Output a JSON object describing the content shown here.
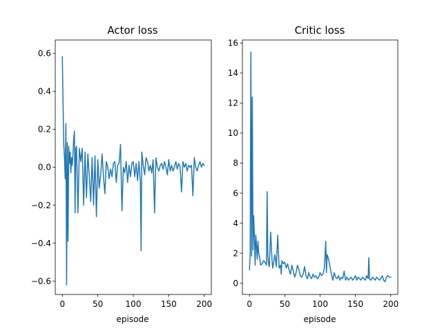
{
  "chart_data": [
    {
      "type": "line",
      "title": "Actor loss",
      "xlabel": "episode",
      "ylabel": "",
      "xlim": [
        -10,
        210
      ],
      "ylim": [
        -0.67,
        0.67
      ],
      "xticks": [
        0,
        50,
        100,
        150,
        200
      ],
      "yticks": [
        -0.6,
        -0.4,
        -0.2,
        0.0,
        0.2,
        0.4,
        0.6
      ],
      "xtick_labels": [
        "0",
        "50",
        "100",
        "150",
        "200"
      ],
      "ytick_labels": [
        "−0.6",
        "−0.4",
        "−0.2",
        "0.0",
        "0.2",
        "0.4",
        "0.6"
      ],
      "grid": false,
      "color": "#1f77b4",
      "series": [
        {
          "x": [
            0,
            1,
            2,
            3,
            4,
            5,
            6,
            7,
            8,
            9,
            10,
            11,
            12,
            13,
            14,
            15,
            16,
            17,
            18,
            19,
            20,
            22,
            24,
            26,
            28,
            30,
            32,
            34,
            36,
            38,
            40,
            42,
            44,
            46,
            48,
            50,
            52,
            54,
            56,
            58,
            60,
            62,
            64,
            66,
            68,
            70,
            72,
            74,
            76,
            78,
            80,
            82,
            84,
            86,
            88,
            90,
            92,
            94,
            96,
            98,
            100,
            102,
            104,
            106,
            108,
            110,
            111,
            112,
            114,
            116,
            118,
            120,
            122,
            124,
            126,
            128,
            130,
            131,
            132,
            134,
            136,
            138,
            140,
            142,
            144,
            146,
            148,
            150,
            152,
            154,
            156,
            158,
            160,
            162,
            164,
            166,
            168,
            170,
            172,
            174,
            176,
            178,
            180,
            182,
            184,
            186,
            188,
            190,
            192,
            194,
            196,
            198,
            200
          ],
          "values": [
            0.58,
            0.34,
            0.12,
            0.05,
            -0.06,
            0.23,
            -0.62,
            0.13,
            -0.39,
            0.11,
            0.02,
            0.08,
            -0.03,
            0.05,
            0.01,
            0.07,
            0.15,
            0.19,
            -0.24,
            0.1,
            0.11,
            -0.24,
            0.1,
            0.03,
            0.1,
            -0.2,
            0.08,
            -0.16,
            0.07,
            -0.05,
            -0.18,
            0.05,
            -0.2,
            0.06,
            -0.26,
            0.04,
            -0.11,
            -0.04,
            0.07,
            -0.05,
            -0.14,
            0.03,
            0.0,
            -0.06,
            -0.01,
            -0.05,
            0.02,
            0.03,
            -0.08,
            0.01,
            0.02,
            0.12,
            -0.23,
            0.0,
            -0.03,
            0.03,
            -0.08,
            0.01,
            -0.05,
            0.02,
            0.03,
            -0.05,
            0.02,
            -0.07,
            0.03,
            -0.08,
            -0.44,
            0.08,
            0.01,
            -0.04,
            0.05,
            0.03,
            -0.02,
            0.01,
            -0.03,
            0.04,
            -0.24,
            -0.07,
            0.05,
            0.0,
            -0.02,
            0.01,
            0.02,
            -0.01,
            0.03,
            0.0,
            -0.04,
            0.04,
            -0.02,
            0.01,
            -0.02,
            0.0,
            0.03,
            -0.01,
            0.02,
            0.0,
            -0.13,
            0.03,
            0.0,
            0.02,
            -0.02,
            0.01,
            0.0,
            0.01,
            -0.15,
            0.05,
            0.0,
            -0.02,
            0.01,
            0.03,
            0.0,
            0.02,
            0.01
          ]
        }
      ]
    },
    {
      "type": "line",
      "title": "Critic loss",
      "xlabel": "episode",
      "ylabel": "",
      "xlim": [
        -10,
        210
      ],
      "ylim": [
        -0.75,
        16.2
      ],
      "xticks": [
        0,
        50,
        100,
        150,
        200
      ],
      "yticks": [
        0,
        2,
        4,
        6,
        8,
        10,
        12,
        14,
        16
      ],
      "xtick_labels": [
        "0",
        "50",
        "100",
        "150",
        "200"
      ],
      "ytick_labels": [
        "0",
        "2",
        "4",
        "6",
        "8",
        "10",
        "12",
        "14",
        "16"
      ],
      "grid": false,
      "color": "#1f77b4",
      "series": [
        {
          "x": [
            0,
            1,
            2,
            3,
            4,
            5,
            6,
            7,
            8,
            9,
            10,
            11,
            12,
            13,
            14,
            15,
            16,
            18,
            20,
            22,
            24,
            25,
            26,
            27,
            28,
            30,
            32,
            33,
            34,
            36,
            38,
            40,
            42,
            44,
            45,
            46,
            48,
            50,
            52,
            54,
            56,
            58,
            60,
            62,
            64,
            66,
            68,
            70,
            72,
            74,
            76,
            78,
            80,
            82,
            84,
            86,
            88,
            90,
            92,
            94,
            96,
            98,
            100,
            102,
            104,
            106,
            108,
            109,
            110,
            112,
            114,
            116,
            118,
            120,
            122,
            124,
            126,
            128,
            130,
            132,
            134,
            136,
            138,
            140,
            142,
            144,
            146,
            148,
            150,
            152,
            154,
            156,
            158,
            160,
            162,
            164,
            166,
            168,
            169,
            170,
            172,
            174,
            176,
            178,
            180,
            182,
            184,
            186,
            188,
            190,
            192,
            194,
            196,
            198,
            200
          ],
          "values": [
            0.9,
            2.0,
            15.4,
            1.8,
            12.4,
            2.2,
            4.5,
            3.1,
            1.2,
            3.2,
            2.5,
            1.6,
            2.8,
            2.0,
            1.8,
            1.5,
            1.2,
            1.3,
            1.5,
            1.4,
            1.2,
            6.1,
            1.8,
            1.3,
            1.1,
            3.4,
            1.5,
            1.0,
            1.3,
            1.9,
            1.1,
            3.2,
            1.0,
            1.2,
            0.6,
            1.5,
            1.3,
            1.4,
            1.0,
            1.3,
            0.9,
            0.6,
            1.2,
            0.8,
            0.4,
            0.7,
            1.2,
            0.9,
            0.5,
            0.4,
            0.6,
            1.1,
            0.5,
            0.3,
            0.7,
            0.4,
            0.3,
            0.6,
            0.4,
            0.5,
            0.3,
            0.4,
            0.7,
            0.5,
            0.6,
            1.0,
            2.8,
            0.7,
            1.9,
            1.6,
            1.1,
            0.6,
            0.2,
            0.7,
            0.4,
            0.3,
            0.5,
            0.2,
            0.4,
            0.3,
            0.8,
            0.2,
            0.4,
            0.2,
            0.3,
            0.4,
            0.2,
            0.3,
            0.5,
            0.2,
            0.4,
            0.3,
            0.2,
            0.4,
            0.3,
            0.2,
            0.5,
            0.3,
            1.7,
            0.3,
            0.2,
            0.4,
            0.3,
            0.2,
            0.4,
            0.3,
            0.2,
            0.3,
            0.5,
            0.2,
            0.1,
            0.4,
            0.5,
            0.4,
            0.4
          ]
        }
      ]
    }
  ]
}
